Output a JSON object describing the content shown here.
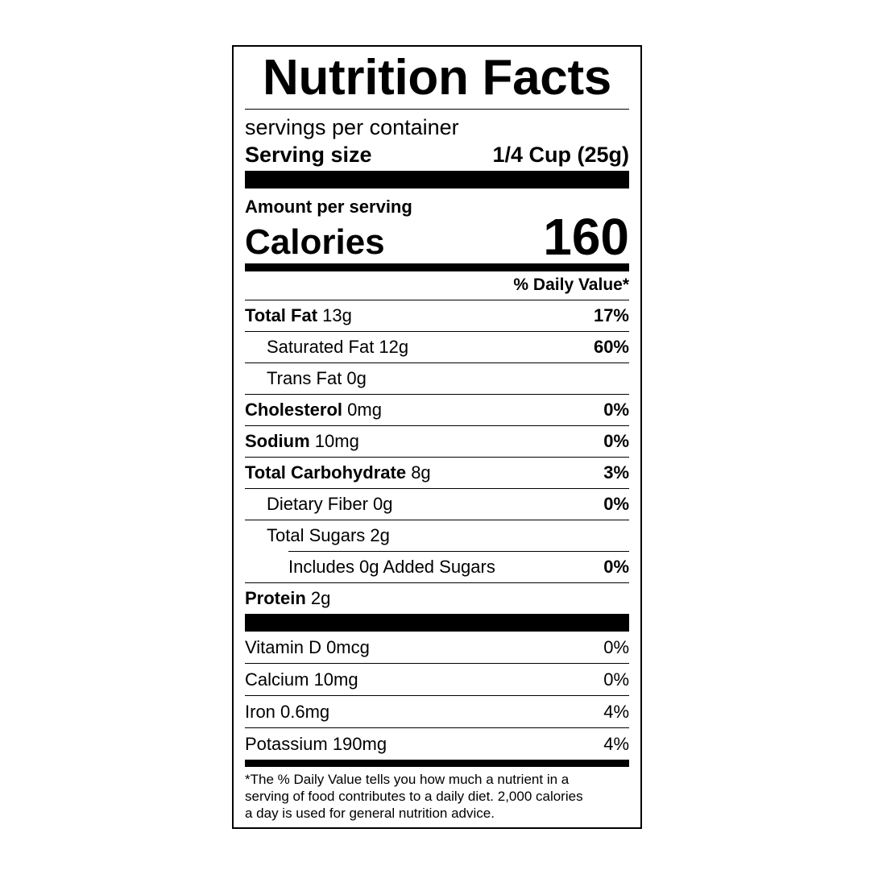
{
  "title": "Nutrition Facts",
  "servings": "servings per container",
  "serving_size": {
    "label": "Serving size",
    "value": "1/4 Cup (25g)"
  },
  "amount_per_serving": "Amount per serving",
  "calories": {
    "label": "Calories",
    "value": "160"
  },
  "daily_value_header": "% Daily Value*",
  "nutrients": [
    {
      "name": "Total Fat",
      "amount": "13g",
      "dv": "17%",
      "sub": [
        {
          "name": "Saturated Fat 12g",
          "dv": "60%"
        },
        {
          "name": "Trans Fat 0g"
        }
      ]
    },
    {
      "name": "Cholesterol",
      "amount": "0mg",
      "dv": "0%"
    },
    {
      "name": "Sodium",
      "amount": "10mg",
      "dv": "0%"
    },
    {
      "name": "Total Carbohydrate",
      "amount": "8g",
      "dv": "3%",
      "sub": [
        {
          "name": "Dietary Fiber 0g",
          "dv": "0%"
        },
        {
          "name": "Total Sugars 2g",
          "sub": [
            {
              "name": "Includes 0g Added Sugars",
              "dv": "0%"
            }
          ]
        }
      ]
    },
    {
      "name": "Protein",
      "amount": "2g"
    }
  ],
  "vitamins": [
    {
      "name": "Vitamin D 0mcg",
      "dv": "0%"
    },
    {
      "name": "Calcium 10mg",
      "dv": "0%"
    },
    {
      "name": "Iron 0.6mg",
      "dv": "4%"
    },
    {
      "name": "Potassium 190mg",
      "dv": "4%"
    }
  ],
  "footnote": [
    "*The % Daily Value tells you how much a nutrient in a",
    "serving of food contributes to a daily diet. 2,000 calories",
    "a day is used for general nutrition advice."
  ]
}
